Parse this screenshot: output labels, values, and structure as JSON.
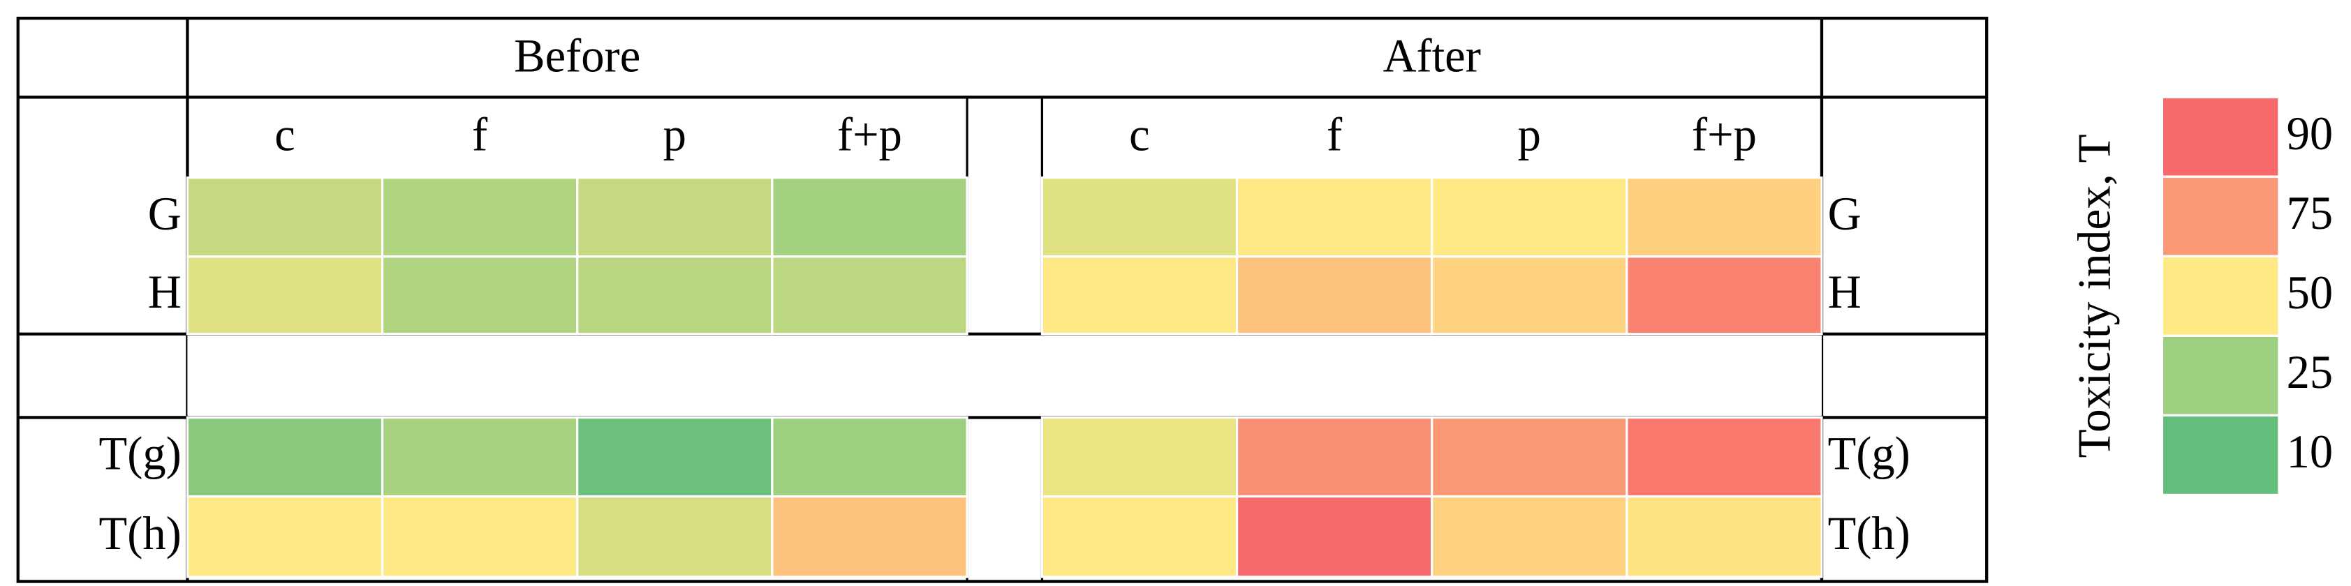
{
  "chart_data": {
    "type": "heatmap",
    "columns": [
      "c",
      "f",
      "p",
      "f+p"
    ],
    "rows": [
      "G",
      "H",
      "T(g)",
      "T(h)"
    ],
    "groups": [
      {
        "name": "Before",
        "values": [
          [
            35,
            30,
            35,
            27
          ],
          [
            42,
            30,
            32,
            33
          ],
          [
            20,
            28,
            12,
            25
          ],
          [
            50,
            50,
            40,
            62
          ]
        ]
      },
      {
        "name": "After",
        "values": [
          [
            42,
            50,
            50,
            58
          ],
          [
            50,
            62,
            57,
            82
          ],
          [
            45,
            78,
            75,
            85
          ],
          [
            50,
            92,
            57,
            52
          ]
        ]
      }
    ],
    "colorbar_title": "Toxicity index, T",
    "colorscale": [
      {
        "value": 10,
        "color": "#63be7b"
      },
      {
        "value": 25,
        "color": "#9ccf7f"
      },
      {
        "value": 50,
        "color": "#ffe984"
      },
      {
        "value": 75,
        "color": "#fb9875"
      },
      {
        "value": 90,
        "color": "#f8696b"
      }
    ]
  }
}
